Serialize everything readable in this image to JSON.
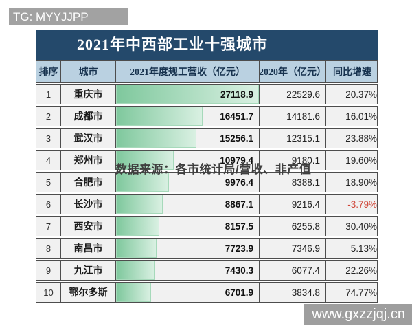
{
  "title": "2021年中西部工业十强城市",
  "watermarks": {
    "top_left": "TG: MYYJJPP",
    "data_source": "数据来源：各市统计局/营收、非产值",
    "site": "www.gxzzjqj.cn"
  },
  "chart_data": {
    "type": "table",
    "title": "2021年中西部工业十强城市",
    "columns": [
      "排序",
      "城市",
      "2021年度规工营收（亿元）",
      "2020年（亿元）",
      "同比增速"
    ],
    "rows": [
      {
        "rank": "1",
        "city": "重庆市",
        "revenue_2021": 27118.9,
        "revenue_2020": 22529.6,
        "growth": "20.37%"
      },
      {
        "rank": "2",
        "city": "成都市",
        "revenue_2021": 16451.7,
        "revenue_2020": 14181.6,
        "growth": "16.01%"
      },
      {
        "rank": "3",
        "city": "武汉市",
        "revenue_2021": 15256.1,
        "revenue_2020": 12315.1,
        "growth": "23.88%"
      },
      {
        "rank": "4",
        "city": "郑州市",
        "revenue_2021": 10979.4,
        "revenue_2020": 9180.1,
        "growth": "19.60%"
      },
      {
        "rank": "5",
        "city": "合肥市",
        "revenue_2021": 9976.4,
        "revenue_2020": 8388.1,
        "growth": "18.90%"
      },
      {
        "rank": "6",
        "city": "长沙市",
        "revenue_2021": 8867.1,
        "revenue_2020": 9216.4,
        "growth": "-3.79%"
      },
      {
        "rank": "7",
        "city": "西安市",
        "revenue_2021": 8157.5,
        "revenue_2020": 6255.8,
        "growth": "30.40%"
      },
      {
        "rank": "8",
        "city": "南昌市",
        "revenue_2021": 7723.9,
        "revenue_2020": 7346.9,
        "growth": "5.13%"
      },
      {
        "rank": "9",
        "city": "九江市",
        "revenue_2021": 7430.3,
        "revenue_2020": 6077.4,
        "growth": "22.26%"
      },
      {
        "rank": "10",
        "city": "鄂尔多斯",
        "revenue_2021": 6701.9,
        "revenue_2020": 3834.8,
        "growth": "74.77%"
      }
    ],
    "bar_max": 27118.9,
    "bar_color_start": "#7fc89d",
    "bar_color_end": "#d9f0e2",
    "negative_color": "#cf4436"
  },
  "colors": {
    "title_bg": "#24496b",
    "header_bg": "#bad1e1",
    "row_bg": "#f1f1f1",
    "border": "#4d4d4d",
    "watermark_bg": "#9e9e9e"
  }
}
